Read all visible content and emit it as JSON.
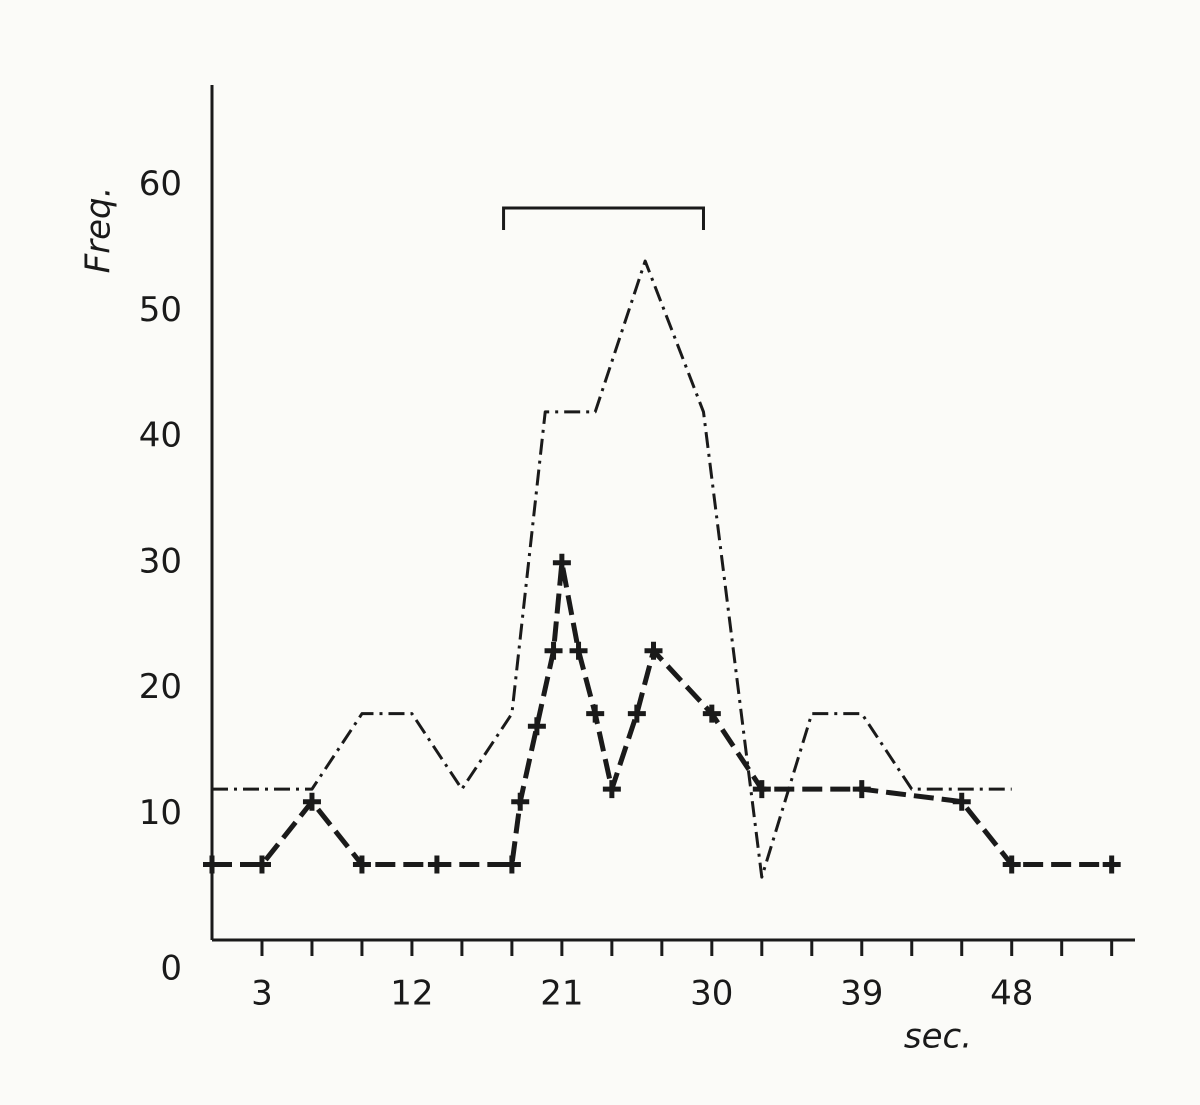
{
  "chart_data": {
    "type": "line",
    "xlabel": "sec.",
    "ylabel": "Freq.",
    "xlim": [
      0,
      55.4
    ],
    "ylim": [
      0,
      68
    ],
    "xticks": [
      3,
      12,
      21,
      30,
      39,
      48
    ],
    "xminorticks": [
      6,
      9,
      15,
      18,
      24,
      27,
      33,
      36,
      42,
      45,
      51,
      54
    ],
    "yticks": [
      0,
      10,
      20,
      30,
      40,
      50,
      60
    ],
    "bracket_x": [
      17.5,
      29.5
    ],
    "series": [
      {
        "color": "#1a1a1a",
        "dash": "dashdot",
        "marker": "none",
        "x": [
          0,
          6,
          9,
          12,
          15,
          18,
          20,
          23,
          26,
          29.5,
          33,
          36,
          39,
          42,
          48
        ],
        "values": [
          12,
          12,
          18,
          18,
          12,
          18,
          42,
          42,
          54,
          42,
          5,
          18,
          18,
          12,
          12
        ]
      },
      {
        "color": "#1a1a1a",
        "dash": "dashed",
        "marker": "plus",
        "x": [
          0,
          3,
          6,
          9,
          13.5,
          18,
          18.5,
          19.5,
          20.5,
          21,
          22,
          23,
          24,
          25.5,
          26.5,
          30,
          33,
          39,
          45,
          48,
          54
        ],
        "values": [
          6,
          6,
          11,
          6,
          6,
          6,
          11,
          17,
          23,
          30,
          23,
          18,
          12,
          18,
          23,
          18,
          12,
          12,
          11,
          6,
          6
        ]
      }
    ]
  }
}
